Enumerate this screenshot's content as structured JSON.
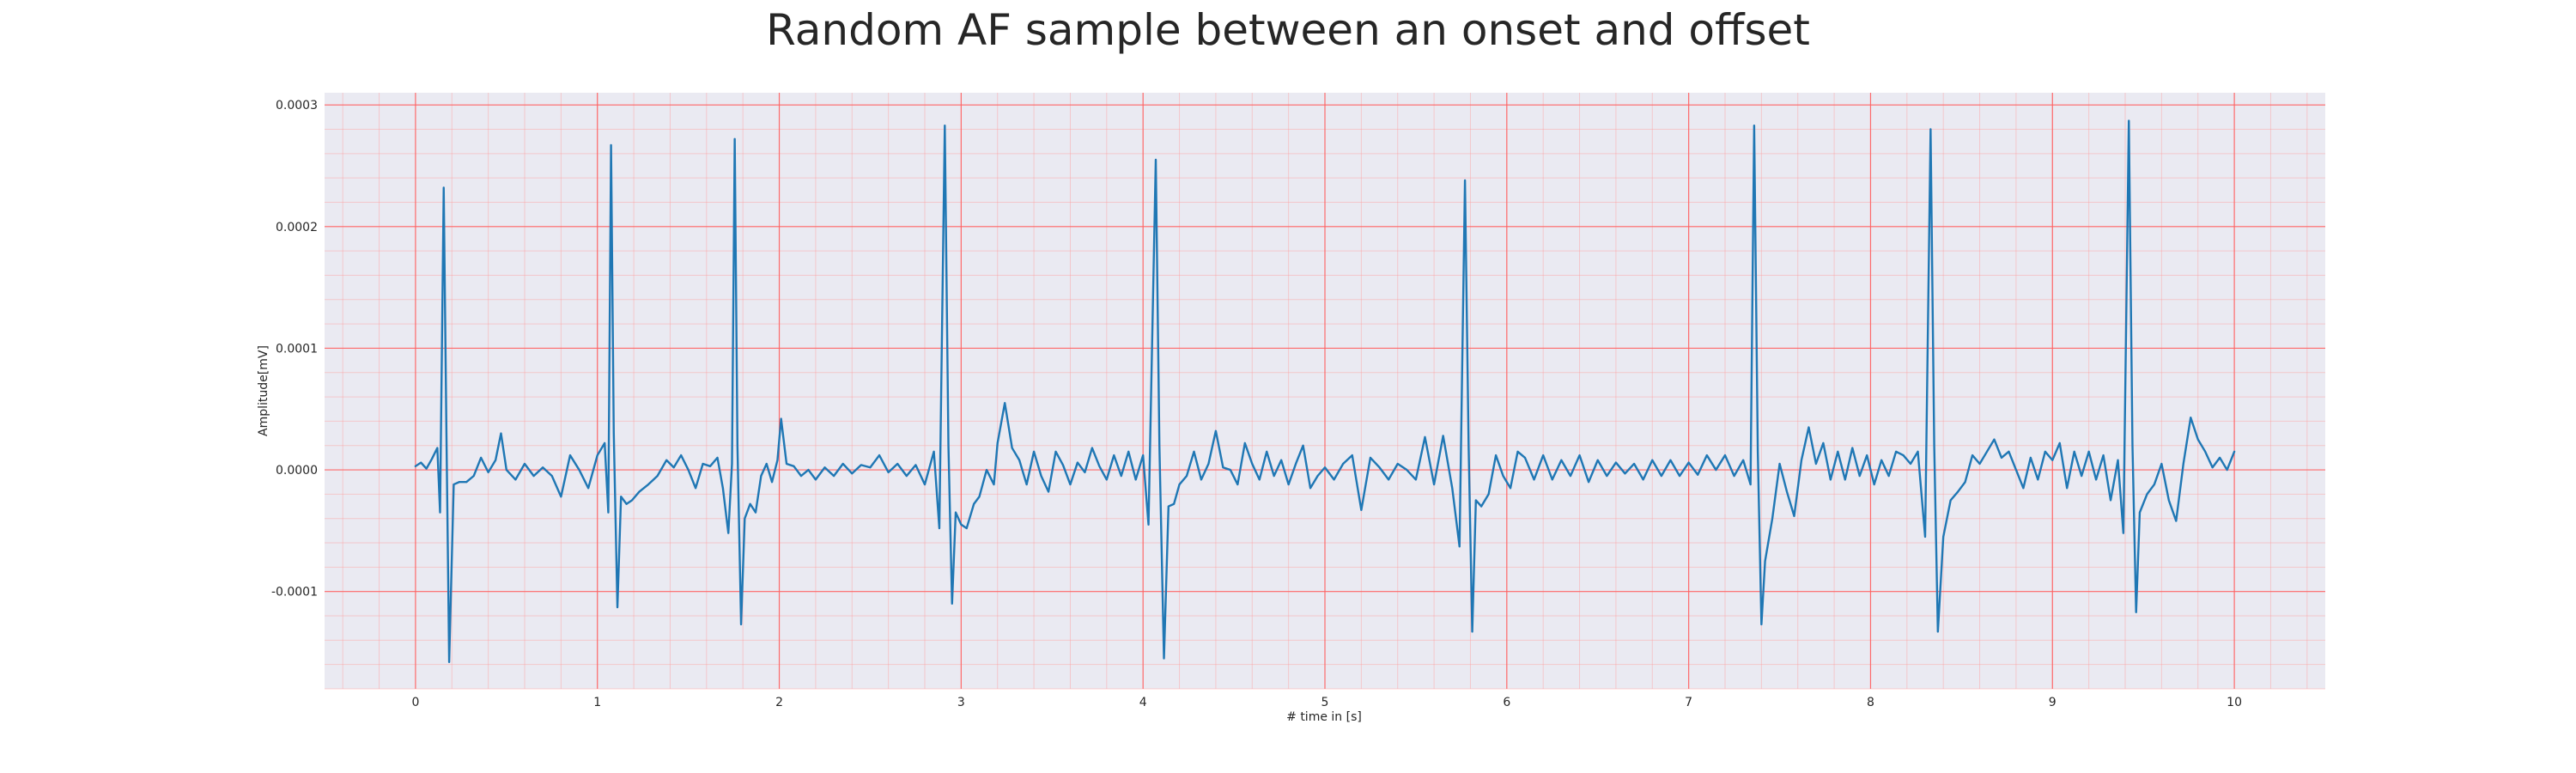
{
  "chart_data": {
    "type": "line",
    "title": "Random AF sample between an onset and offset",
    "xlabel": "# time in [s]",
    "ylabel": "Amplitude[mV]",
    "xlim": [
      -0.5,
      10.5
    ],
    "ylim": [
      -0.00018,
      0.00031
    ],
    "x_ticks": [
      0,
      1,
      2,
      3,
      4,
      5,
      6,
      7,
      8,
      9,
      10
    ],
    "x_tick_labels": [
      "0",
      "1",
      "2",
      "3",
      "4",
      "5",
      "6",
      "7",
      "8",
      "9",
      "10"
    ],
    "y_ticks": [
      -0.0001,
      0.0,
      0.0001,
      0.0002,
      0.0003
    ],
    "y_tick_labels": [
      "-0.0001",
      "0.0000",
      "0.0001",
      "0.0002",
      "0.0003"
    ],
    "grid": true,
    "minor_grid": true,
    "series": [
      {
        "color": "#1f77b4",
        "points": [
          [
            0.0,
            3e-06
          ],
          [
            0.03,
            6e-06
          ],
          [
            0.06,
            1e-06
          ],
          [
            0.09,
            9e-06
          ],
          [
            0.12,
            1.8e-05
          ],
          [
            0.135,
            -3.5e-05
          ],
          [
            0.155,
            0.000232
          ],
          [
            0.17,
            3e-05
          ],
          [
            0.185,
            -0.000158
          ],
          [
            0.21,
            -1.2e-05
          ],
          [
            0.24,
            -1e-05
          ],
          [
            0.28,
            -1e-05
          ],
          [
            0.32,
            -5e-06
          ],
          [
            0.36,
            1e-05
          ],
          [
            0.4,
            -2e-06
          ],
          [
            0.44,
            8e-06
          ],
          [
            0.47,
            3e-05
          ],
          [
            0.5,
            0.0
          ],
          [
            0.55,
            -8e-06
          ],
          [
            0.6,
            5e-06
          ],
          [
            0.65,
            -5e-06
          ],
          [
            0.7,
            2e-06
          ],
          [
            0.75,
            -5e-06
          ],
          [
            0.8,
            -2.2e-05
          ],
          [
            0.85,
            1.2e-05
          ],
          [
            0.9,
            0.0
          ],
          [
            0.95,
            -1.5e-05
          ],
          [
            1.0,
            1.2e-05
          ],
          [
            1.04,
            2.2e-05
          ],
          [
            1.06,
            -3.5e-05
          ],
          [
            1.075,
            0.000267
          ],
          [
            1.09,
            3e-05
          ],
          [
            1.11,
            -0.000113
          ],
          [
            1.13,
            -2.2e-05
          ],
          [
            1.16,
            -2.8e-05
          ],
          [
            1.19,
            -2.5e-05
          ],
          [
            1.23,
            -1.8e-05
          ],
          [
            1.28,
            -1.2e-05
          ],
          [
            1.33,
            -5e-06
          ],
          [
            1.38,
            8e-06
          ],
          [
            1.42,
            2e-06
          ],
          [
            1.46,
            1.2e-05
          ],
          [
            1.5,
            0.0
          ],
          [
            1.54,
            -1.5e-05
          ],
          [
            1.58,
            5e-06
          ],
          [
            1.62,
            3e-06
          ],
          [
            1.66,
            1e-05
          ],
          [
            1.69,
            -1.5e-05
          ],
          [
            1.72,
            -5.2e-05
          ],
          [
            1.74,
            5e-06
          ],
          [
            1.755,
            0.000272
          ],
          [
            1.77,
            2e-05
          ],
          [
            1.79,
            -0.000127
          ],
          [
            1.81,
            -4e-05
          ],
          [
            1.84,
            -2.8e-05
          ],
          [
            1.87,
            -3.5e-05
          ],
          [
            1.9,
            -5e-06
          ],
          [
            1.93,
            5e-06
          ],
          [
            1.96,
            -1e-05
          ],
          [
            1.99,
            8e-06
          ],
          [
            2.01,
            4.2e-05
          ],
          [
            2.04,
            5e-06
          ],
          [
            2.08,
            3e-06
          ],
          [
            2.12,
            -5e-06
          ],
          [
            2.16,
            0.0
          ],
          [
            2.2,
            -8e-06
          ],
          [
            2.25,
            2e-06
          ],
          [
            2.3,
            -5e-06
          ],
          [
            2.35,
            5e-06
          ],
          [
            2.4,
            -3e-06
          ],
          [
            2.45,
            4e-06
          ],
          [
            2.5,
            2e-06
          ],
          [
            2.55,
            1.2e-05
          ],
          [
            2.6,
            -2e-06
          ],
          [
            2.65,
            5e-06
          ],
          [
            2.7,
            -5e-06
          ],
          [
            2.75,
            4e-06
          ],
          [
            2.8,
            -1.2e-05
          ],
          [
            2.85,
            1.5e-05
          ],
          [
            2.88,
            -4.8e-05
          ],
          [
            2.91,
            0.000283
          ],
          [
            2.93,
            2e-05
          ],
          [
            2.95,
            -0.00011
          ],
          [
            2.97,
            -3.5e-05
          ],
          [
            3.0,
            -4.5e-05
          ],
          [
            3.03,
            -4.8e-05
          ],
          [
            3.07,
            -2.8e-05
          ],
          [
            3.1,
            -2.2e-05
          ],
          [
            3.14,
            0.0
          ],
          [
            3.18,
            -1.2e-05
          ],
          [
            3.2,
            2.2e-05
          ],
          [
            3.24,
            5.5e-05
          ],
          [
            3.28,
            1.8e-05
          ],
          [
            3.32,
            8e-06
          ],
          [
            3.36,
            -1.2e-05
          ],
          [
            3.4,
            1.5e-05
          ],
          [
            3.44,
            -5e-06
          ],
          [
            3.48,
            -1.8e-05
          ],
          [
            3.52,
            1.5e-05
          ],
          [
            3.56,
            4e-06
          ],
          [
            3.6,
            -1.2e-05
          ],
          [
            3.64,
            6e-06
          ],
          [
            3.68,
            -2e-06
          ],
          [
            3.72,
            1.8e-05
          ],
          [
            3.76,
            3e-06
          ],
          [
            3.8,
            -8e-06
          ],
          [
            3.84,
            1.2e-05
          ],
          [
            3.88,
            -5e-06
          ],
          [
            3.92,
            1.5e-05
          ],
          [
            3.96,
            -8e-06
          ],
          [
            4.0,
            1.2e-05
          ],
          [
            4.03,
            -4.5e-05
          ],
          [
            4.07,
            0.000255
          ],
          [
            4.09,
            2e-05
          ],
          [
            4.115,
            -0.000155
          ],
          [
            4.14,
            -3e-05
          ],
          [
            4.17,
            -2.8e-05
          ],
          [
            4.2,
            -1.2e-05
          ],
          [
            4.24,
            -5e-06
          ],
          [
            4.28,
            1.5e-05
          ],
          [
            4.32,
            -8e-06
          ],
          [
            4.36,
            5e-06
          ],
          [
            4.4,
            3.2e-05
          ],
          [
            4.44,
            2e-06
          ],
          [
            4.48,
            0.0
          ],
          [
            4.52,
            -1.2e-05
          ],
          [
            4.56,
            2.2e-05
          ],
          [
            4.6,
            5e-06
          ],
          [
            4.64,
            -8e-06
          ],
          [
            4.68,
            1.5e-05
          ],
          [
            4.72,
            -5e-06
          ],
          [
            4.76,
            8e-06
          ],
          [
            4.8,
            -1.2e-05
          ],
          [
            4.84,
            5e-06
          ],
          [
            4.88,
            2e-05
          ],
          [
            4.92,
            -1.5e-05
          ],
          [
            4.96,
            -5e-06
          ],
          [
            5.0,
            2e-06
          ],
          [
            5.05,
            -8e-06
          ],
          [
            5.1,
            5e-06
          ],
          [
            5.15,
            1.2e-05
          ],
          [
            5.2,
            -3.3e-05
          ],
          [
            5.25,
            1e-05
          ],
          [
            5.3,
            2e-06
          ],
          [
            5.35,
            -8e-06
          ],
          [
            5.4,
            5e-06
          ],
          [
            5.45,
            0.0
          ],
          [
            5.5,
            -8e-06
          ],
          [
            5.55,
            2.7e-05
          ],
          [
            5.6,
            -1.2e-05
          ],
          [
            5.65,
            2.8e-05
          ],
          [
            5.7,
            -1.5e-05
          ],
          [
            5.74,
            -6.3e-05
          ],
          [
            5.77,
            0.000238
          ],
          [
            5.79,
            2e-05
          ],
          [
            5.81,
            -0.000133
          ],
          [
            5.83,
            -2.5e-05
          ],
          [
            5.86,
            -3e-05
          ],
          [
            5.9,
            -2e-05
          ],
          [
            5.94,
            1.2e-05
          ],
          [
            5.98,
            -5e-06
          ],
          [
            6.02,
            -1.5e-05
          ],
          [
            6.06,
            1.5e-05
          ],
          [
            6.1,
            1e-05
          ],
          [
            6.15,
            -8e-06
          ],
          [
            6.2,
            1.2e-05
          ],
          [
            6.25,
            -8e-06
          ],
          [
            6.3,
            8e-06
          ],
          [
            6.35,
            -5e-06
          ],
          [
            6.4,
            1.2e-05
          ],
          [
            6.45,
            -1e-05
          ],
          [
            6.5,
            8e-06
          ],
          [
            6.55,
            -5e-06
          ],
          [
            6.6,
            6e-06
          ],
          [
            6.65,
            -3e-06
          ],
          [
            6.7,
            5e-06
          ],
          [
            6.75,
            -8e-06
          ],
          [
            6.8,
            8e-06
          ],
          [
            6.85,
            -5e-06
          ],
          [
            6.9,
            8e-06
          ],
          [
            6.95,
            -5e-06
          ],
          [
            7.0,
            6e-06
          ],
          [
            7.05,
            -4e-06
          ],
          [
            7.1,
            1.2e-05
          ],
          [
            7.15,
            0.0
          ],
          [
            7.2,
            1.2e-05
          ],
          [
            7.25,
            -5e-06
          ],
          [
            7.3,
            8e-06
          ],
          [
            7.34,
            -1.2e-05
          ],
          [
            7.36,
            0.000283
          ],
          [
            7.38,
            1.5e-05
          ],
          [
            7.4,
            -0.000127
          ],
          [
            7.42,
            -7.5e-05
          ],
          [
            7.46,
            -4e-05
          ],
          [
            7.5,
            5e-06
          ],
          [
            7.54,
            -1.8e-05
          ],
          [
            7.58,
            -3.8e-05
          ],
          [
            7.62,
            8e-06
          ],
          [
            7.66,
            3.5e-05
          ],
          [
            7.7,
            5e-06
          ],
          [
            7.74,
            2.2e-05
          ],
          [
            7.78,
            -8e-06
          ],
          [
            7.82,
            1.5e-05
          ],
          [
            7.86,
            -8e-06
          ],
          [
            7.9,
            1.8e-05
          ],
          [
            7.94,
            -5e-06
          ],
          [
            7.98,
            1.2e-05
          ],
          [
            8.02,
            -1.2e-05
          ],
          [
            8.06,
            8e-06
          ],
          [
            8.1,
            -5e-06
          ],
          [
            8.14,
            1.5e-05
          ],
          [
            8.18,
            1.2e-05
          ],
          [
            8.22,
            5e-06
          ],
          [
            8.26,
            1.5e-05
          ],
          [
            8.3,
            -5.5e-05
          ],
          [
            8.33,
            0.00028
          ],
          [
            8.35,
            2e-05
          ],
          [
            8.37,
            -0.000133
          ],
          [
            8.4,
            -5.5e-05
          ],
          [
            8.44,
            -2.5e-05
          ],
          [
            8.48,
            -1.8e-05
          ],
          [
            8.52,
            -1e-05
          ],
          [
            8.56,
            1.2e-05
          ],
          [
            8.6,
            5e-06
          ],
          [
            8.64,
            1.5e-05
          ],
          [
            8.68,
            2.5e-05
          ],
          [
            8.72,
            1e-05
          ],
          [
            8.76,
            1.5e-05
          ],
          [
            8.8,
            0.0
          ],
          [
            8.84,
            -1.5e-05
          ],
          [
            8.88,
            1e-05
          ],
          [
            8.92,
            -8e-06
          ],
          [
            8.96,
            1.5e-05
          ],
          [
            9.0,
            8e-06
          ],
          [
            9.04,
            2.2e-05
          ],
          [
            9.08,
            -1.5e-05
          ],
          [
            9.12,
            1.5e-05
          ],
          [
            9.16,
            -5e-06
          ],
          [
            9.2,
            1.5e-05
          ],
          [
            9.24,
            -8e-06
          ],
          [
            9.28,
            1.2e-05
          ],
          [
            9.32,
            -2.5e-05
          ],
          [
            9.36,
            8e-06
          ],
          [
            9.39,
            -5.2e-05
          ],
          [
            9.42,
            0.000287
          ],
          [
            9.44,
            2e-05
          ],
          [
            9.46,
            -0.000117
          ],
          [
            9.48,
            -3.5e-05
          ],
          [
            9.52,
            -2e-05
          ],
          [
            9.56,
            -1.2e-05
          ],
          [
            9.6,
            5e-06
          ],
          [
            9.64,
            -2.5e-05
          ],
          [
            9.68,
            -4.2e-05
          ],
          [
            9.72,
            5e-06
          ],
          [
            9.76,
            4.3e-05
          ],
          [
            9.8,
            2.5e-05
          ],
          [
            9.84,
            1.5e-05
          ],
          [
            9.88,
            2e-06
          ],
          [
            9.92,
            1e-05
          ],
          [
            9.96,
            0.0
          ],
          [
            10.0,
            1.5e-05
          ]
        ]
      }
    ]
  }
}
